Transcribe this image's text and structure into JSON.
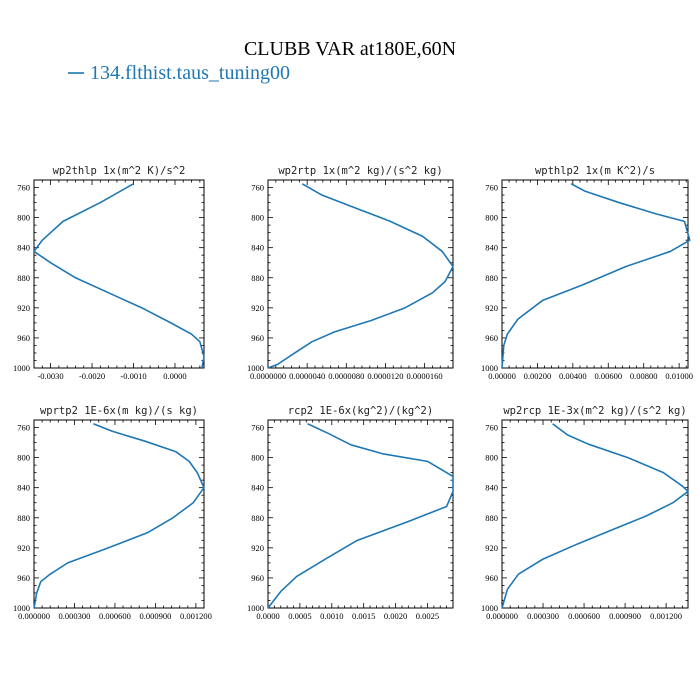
{
  "figure": {
    "title": "CLUBB VAR at180E,60N",
    "legend_label": "134.flthist.taus_tuning00",
    "legend_color": "#1f77b4",
    "line_color": "#1f77b4"
  },
  "chart_data": [
    {
      "type": "line",
      "title": "wp2thlp  1x(m^2 K)/s^2",
      "xlim": [
        -0.0034,
        0.0007
      ],
      "ylim": [
        1000,
        750
      ],
      "y_inverted": true,
      "xticks": [
        -0.003,
        -0.002,
        -0.001,
        0.0
      ],
      "xtick_labels": [
        "-0.0030",
        "-0.0020",
        "-0.0010",
        "0.0000"
      ],
      "yticks": [
        760,
        800,
        840,
        880,
        920,
        960,
        1000
      ],
      "series": [
        {
          "x": [
            -0.001,
            -0.0018,
            -0.0027,
            -0.0032,
            -0.0034,
            -0.003,
            -0.0024,
            -0.0016,
            -0.0008,
            -0.0001,
            0.0004,
            0.0006,
            0.0007,
            0.00065
          ],
          "y": [
            755,
            780,
            805,
            830,
            845,
            860,
            880,
            900,
            920,
            940,
            955,
            965,
            985,
            1000
          ]
        }
      ]
    },
    {
      "type": "line",
      "title": "wp2rtp  1x(m^2 kg)/(s^2 kg)",
      "xlim": [
        0.0,
        1.89e-05
      ],
      "ylim": [
        1000,
        750
      ],
      "y_inverted": true,
      "xticks": [
        0.0,
        4e-06,
        8e-06,
        1.2e-05,
        1.6e-05
      ],
      "xtick_labels": [
        "0.0000000",
        "0.0000040",
        "0.0000080",
        "0.0000120",
        "0.0000160"
      ],
      "yticks": [
        760,
        800,
        840,
        880,
        920,
        960,
        1000
      ],
      "series": [
        {
          "x": [
            3.5e-06,
            5.5e-06,
            8.5e-06,
            1.25e-05,
            1.58e-05,
            1.78e-05,
            1.89e-05,
            1.81e-05,
            1.68e-05,
            1.4e-05,
            1.05e-05,
            6.8e-06,
            4.5e-06,
            2.5e-06,
            1e-06,
            0.0
          ],
          "y": [
            755,
            770,
            785,
            805,
            825,
            845,
            865,
            885,
            900,
            920,
            937,
            952,
            965,
            982,
            995,
            1000
          ]
        }
      ]
    },
    {
      "type": "line",
      "title": "wpthlp2  1x(m K^2)/s",
      "xlim": [
        0.0,
        0.0105
      ],
      "ylim": [
        1000,
        750
      ],
      "y_inverted": true,
      "xticks": [
        0.0,
        0.002,
        0.004,
        0.006,
        0.008,
        0.01
      ],
      "xtick_labels": [
        "0.00000",
        "0.00200",
        "0.00400",
        "0.00600",
        "0.00800",
        "0.01000"
      ],
      "yticks": [
        760,
        800,
        840,
        880,
        920,
        960,
        1000
      ],
      "series": [
        {
          "x": [
            0.0039,
            0.0047,
            0.0066,
            0.0087,
            0.0103,
            0.0106,
            0.0095,
            0.007,
            0.0045,
            0.0023,
            0.0009,
            0.0003,
            0.0001,
            5e-05,
            0.0
          ],
          "y": [
            755,
            765,
            780,
            795,
            805,
            830,
            845,
            865,
            890,
            910,
            935,
            955,
            970,
            985,
            1000
          ]
        }
      ]
    },
    {
      "type": "line",
      "title": "wprtp2  1E-6x(m kg)/(s kg)",
      "xlim": [
        0.0,
        0.00126
      ],
      "ylim": [
        1000,
        750
      ],
      "y_inverted": true,
      "xticks": [
        0.0,
        0.0003,
        0.0006,
        0.0009,
        0.0012
      ],
      "xtick_labels": [
        "0.000000",
        "0.000300",
        "0.000600",
        "0.000900",
        "0.001200"
      ],
      "yticks": [
        760,
        800,
        840,
        880,
        920,
        960,
        1000
      ],
      "series": [
        {
          "x": [
            0.00044,
            0.00058,
            0.00082,
            0.00105,
            0.00115,
            0.00121,
            0.00126,
            0.00118,
            0.00103,
            0.00084,
            0.00055,
            0.00025,
            0.00012,
            5e-05,
            2e-05,
            0.0
          ],
          "y": [
            755,
            765,
            778,
            792,
            805,
            820,
            840,
            860,
            880,
            900,
            920,
            940,
            955,
            965,
            980,
            1000
          ]
        }
      ]
    },
    {
      "type": "line",
      "title": "rcp2  1E-6x(kg^2)/(kg^2)",
      "xlim": [
        0.0,
        0.0029
      ],
      "ylim": [
        1000,
        750
      ],
      "y_inverted": true,
      "xticks": [
        0.0,
        0.0005,
        0.001,
        0.0015,
        0.002,
        0.0025
      ],
      "xtick_labels": [
        "0.0000",
        "0.0005",
        "0.0010",
        "0.0015",
        "0.0020",
        "0.0025"
      ],
      "yticks": [
        760,
        800,
        840,
        880,
        920,
        960,
        1000
      ],
      "series": [
        {
          "x": [
            0.00062,
            0.00095,
            0.0013,
            0.0018,
            0.0025,
            0.0029,
            0.0029,
            0.0028,
            0.0022,
            0.0014,
            0.0009,
            0.00045,
            0.0002,
            0.0
          ],
          "y": [
            755,
            768,
            783,
            795,
            805,
            825,
            845,
            865,
            885,
            910,
            935,
            958,
            978,
            1000
          ]
        }
      ]
    },
    {
      "type": "line",
      "title": "wp2rcp  1E-3x(m^2 kg)/(s^2 kg)",
      "xlim": [
        0.0,
        0.00136
      ],
      "ylim": [
        1000,
        750
      ],
      "y_inverted": true,
      "xticks": [
        0.0,
        0.0003,
        0.0006,
        0.0009,
        0.0012
      ],
      "xtick_labels": [
        "0.000000",
        "0.000300",
        "0.000600",
        "0.000900",
        "0.001200"
      ],
      "yticks": [
        760,
        800,
        840,
        880,
        920,
        960,
        1000
      ],
      "series": [
        {
          "x": [
            0.00037,
            0.00048,
            0.00063,
            0.00092,
            0.00118,
            0.00132,
            0.00136,
            0.00125,
            0.00105,
            0.00082,
            0.00055,
            0.0003,
            0.00012,
            4e-05,
            0.0
          ],
          "y": [
            755,
            770,
            782,
            800,
            820,
            838,
            845,
            860,
            878,
            895,
            915,
            935,
            955,
            975,
            1000
          ]
        }
      ]
    }
  ]
}
